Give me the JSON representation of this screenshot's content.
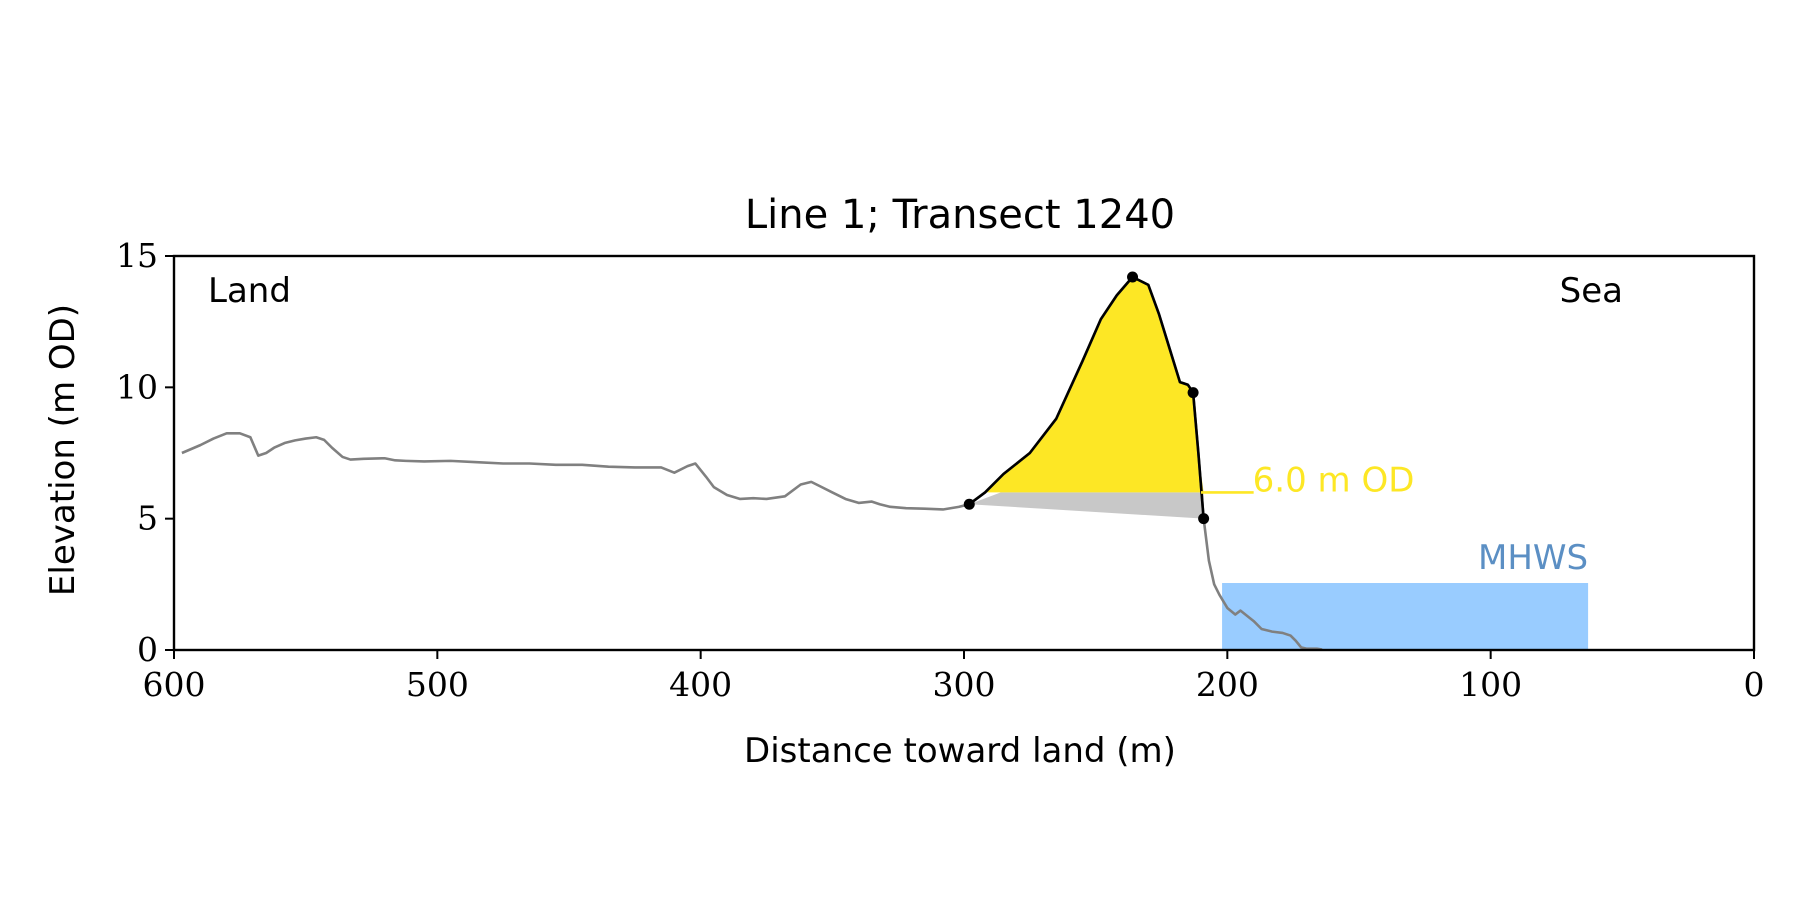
{
  "chart_data": {
    "type": "line",
    "title": "Line 1; Transect 1240",
    "xlabel": "Distance toward land (m)",
    "ylabel": "Elevation (m OD)",
    "xlim": [
      600,
      0
    ],
    "ylim": [
      0,
      15
    ],
    "x_ticks": [
      "600",
      "500",
      "400",
      "300",
      "200",
      "100",
      "0"
    ],
    "y_ticks": [
      "0",
      "5",
      "10",
      "15"
    ],
    "grid": false,
    "colors": {
      "profile": "#808080",
      "dune_outline": "#000000",
      "dune_fill": "#fde725",
      "base_fill": "#c8c8c8",
      "threshold": "#fde725",
      "mhws_band": "#99ccff",
      "mhws_text": "#5b8fc4"
    },
    "annotations": {
      "land": "Land",
      "sea": "Sea",
      "threshold_label": "6.0 m OD",
      "mhws_label": "MHWS"
    },
    "threshold": {
      "elevation": 6.0,
      "x_from": 210,
      "x_to": 190
    },
    "mhws": {
      "elevation": 2.55,
      "x_from": 202,
      "x_to": 63
    },
    "profile": {
      "x": [
        597,
        590,
        585,
        580,
        575,
        571,
        568,
        565,
        562,
        558,
        554,
        550,
        546,
        543,
        540,
        536,
        533,
        528,
        520,
        516,
        512,
        505,
        495,
        485,
        475,
        465,
        455,
        445,
        435,
        425,
        415,
        410,
        405,
        402,
        398,
        395,
        390,
        385,
        380,
        375,
        368,
        362,
        358,
        354,
        350,
        345,
        340,
        335,
        332,
        328,
        322,
        315,
        308,
        302,
        298,
        292,
        285,
        275,
        265,
        255,
        248,
        242,
        236,
        230,
        226,
        222,
        218,
        215,
        213,
        211,
        209,
        207,
        205,
        203,
        200,
        197,
        195,
        190,
        187,
        183,
        179,
        176,
        174,
        172,
        170,
        166,
        164
      ],
      "y": [
        7.5,
        7.8,
        8.05,
        8.25,
        8.25,
        8.1,
        7.4,
        7.5,
        7.7,
        7.88,
        7.98,
        8.05,
        8.1,
        8.0,
        7.7,
        7.35,
        7.25,
        7.28,
        7.3,
        7.22,
        7.2,
        7.18,
        7.2,
        7.15,
        7.1,
        7.1,
        7.05,
        7.05,
        6.98,
        6.95,
        6.95,
        6.75,
        7.0,
        7.1,
        6.6,
        6.2,
        5.9,
        5.75,
        5.78,
        5.75,
        5.85,
        6.3,
        6.4,
        6.2,
        6.0,
        5.75,
        5.6,
        5.65,
        5.55,
        5.45,
        5.4,
        5.38,
        5.35,
        5.45,
        5.55,
        6.0,
        6.7,
        7.5,
        8.8,
        11.0,
        12.6,
        13.5,
        14.2,
        13.9,
        12.8,
        11.5,
        10.2,
        10.1,
        9.8,
        7.5,
        5.0,
        3.4,
        2.5,
        2.1,
        1.6,
        1.35,
        1.5,
        1.1,
        0.8,
        0.7,
        0.65,
        0.55,
        0.35,
        0.1,
        0.05,
        0.05,
        0.02
      ]
    },
    "dune_outline": {
      "x": [
        298,
        292,
        285,
        275,
        265,
        255,
        248,
        242,
        236,
        230,
        226,
        222,
        218,
        215,
        213,
        211,
        209
      ],
      "y": [
        5.55,
        6.0,
        6.7,
        7.5,
        8.8,
        11.0,
        12.6,
        13.5,
        14.2,
        13.9,
        12.8,
        11.5,
        10.2,
        10.1,
        9.8,
        7.5,
        5.0
      ]
    },
    "key_points": [
      {
        "x": 298,
        "y": 5.55
      },
      {
        "x": 236,
        "y": 14.2
      },
      {
        "x": 213,
        "y": 9.8
      },
      {
        "x": 209,
        "y": 5.0
      }
    ]
  }
}
